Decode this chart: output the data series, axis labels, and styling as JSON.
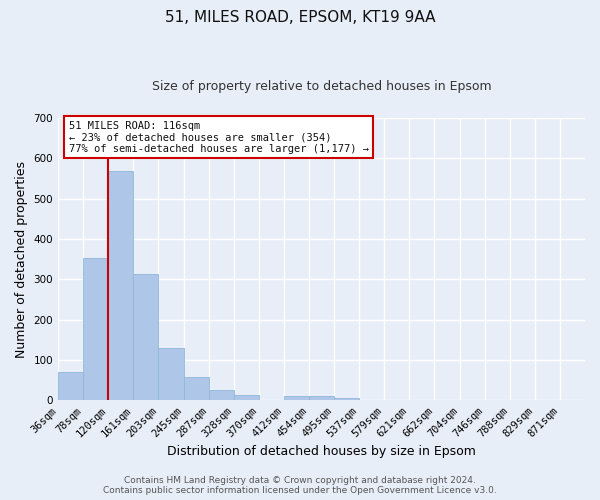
{
  "title": "51, MILES ROAD, EPSOM, KT19 9AA",
  "subtitle": "Size of property relative to detached houses in Epsom",
  "xlabel": "Distribution of detached houses by size in Epsom",
  "ylabel": "Number of detached properties",
  "bar_labels": [
    "36sqm",
    "78sqm",
    "120sqm",
    "161sqm",
    "203sqm",
    "245sqm",
    "287sqm",
    "328sqm",
    "370sqm",
    "412sqm",
    "454sqm",
    "495sqm",
    "537sqm",
    "579sqm",
    "621sqm",
    "662sqm",
    "704sqm",
    "746sqm",
    "788sqm",
    "829sqm",
    "871sqm"
  ],
  "bar_heights": [
    70,
    352,
    568,
    313,
    130,
    58,
    27,
    13,
    0,
    10,
    10,
    5,
    0,
    0,
    0,
    0,
    0,
    0,
    0,
    0,
    0
  ],
  "bar_color": "#aec6e8",
  "bar_edge_color": "#8fb8d8",
  "vline_x": 2.0,
  "vline_color": "#cc0000",
  "ylim": [
    0,
    700
  ],
  "yticks": [
    0,
    100,
    200,
    300,
    400,
    500,
    600,
    700
  ],
  "annotation_title": "51 MILES ROAD: 116sqm",
  "annotation_line1": "← 23% of detached houses are smaller (354)",
  "annotation_line2": "77% of semi-detached houses are larger (1,177) →",
  "annotation_box_facecolor": "#ffffff",
  "annotation_box_edge": "#cc0000",
  "footer_line1": "Contains HM Land Registry data © Crown copyright and database right 2024.",
  "footer_line2": "Contains public sector information licensed under the Open Government Licence v3.0.",
  "background_color": "#e8eef8",
  "grid_color": "#ffffff",
  "title_fontsize": 11,
  "subtitle_fontsize": 9,
  "axis_label_fontsize": 9,
  "tick_fontsize": 7.5,
  "footer_fontsize": 6.5,
  "annotation_fontsize": 7.5
}
